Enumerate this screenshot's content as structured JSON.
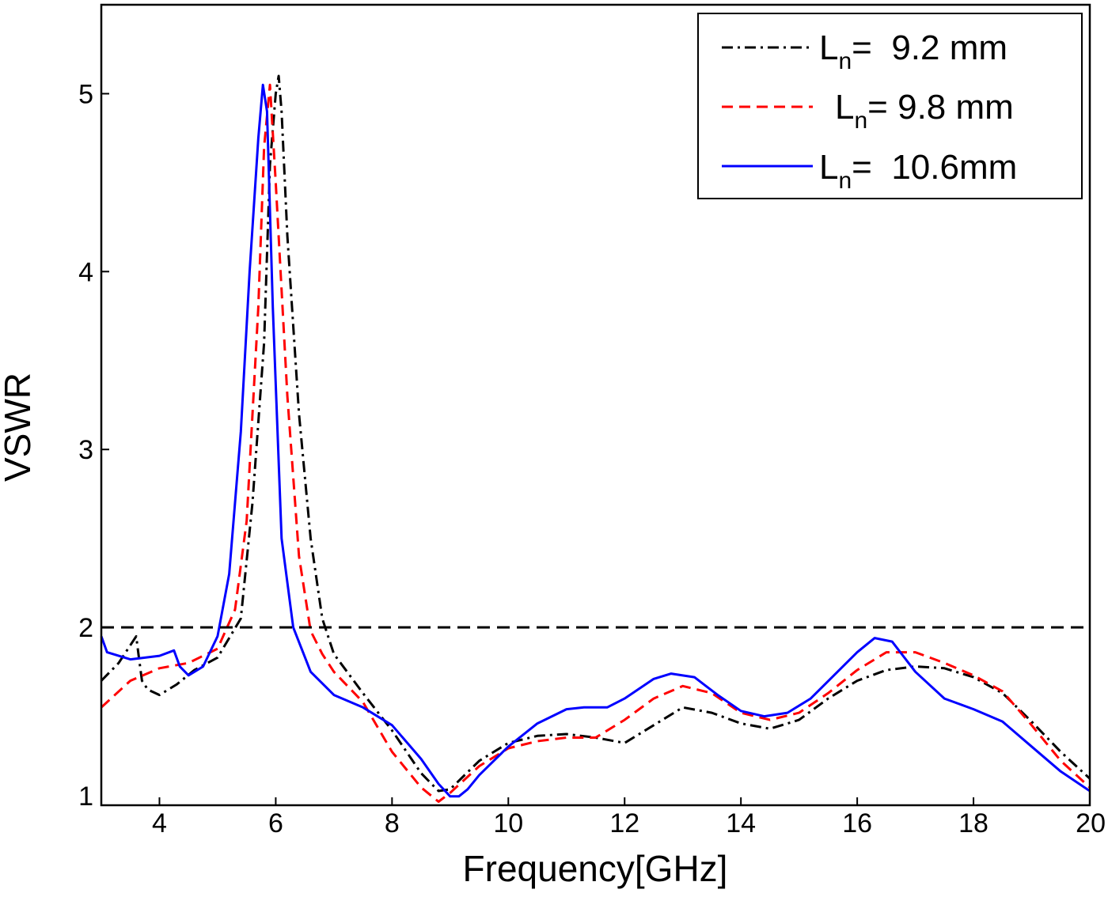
{
  "chart_data": {
    "type": "line",
    "title": "",
    "xlabel": "Frequency[GHz]",
    "ylabel": "VSWR",
    "xlim": [
      3,
      20
    ],
    "ylim": [
      1,
      5.5
    ],
    "xticks": [
      4,
      6,
      8,
      10,
      12,
      14,
      16,
      18,
      20
    ],
    "xtick_labels": [
      "4",
      "6",
      "8",
      "10",
      "12",
      "14",
      "16",
      "18",
      "20"
    ],
    "yticks": [
      1,
      2,
      3,
      4,
      5
    ],
    "ytick_labels": [
      "1",
      "2",
      "3",
      "4",
      "5"
    ],
    "grid": false,
    "legend_position": "top-right",
    "reference_line": {
      "y": 2,
      "style": "dashed",
      "color": "#000000"
    },
    "series": [
      {
        "name": "Ln= 9.2 mm",
        "legend": {
          "main": "L",
          "sub": "n",
          "rest": "=  9.2 mm"
        },
        "color": "#000000",
        "style": "dashdot",
        "x": [
          3.0,
          3.3,
          3.6,
          3.65,
          3.7,
          3.8,
          4.0,
          4.3,
          4.6,
          5.0,
          5.4,
          5.6,
          5.8,
          5.9,
          6.0,
          6.05,
          6.1,
          6.2,
          6.4,
          6.6,
          6.8,
          7.0,
          7.5,
          8.0,
          8.5,
          8.8,
          9.0,
          9.5,
          10.0,
          10.5,
          11.0,
          11.5,
          12.0,
          12.5,
          13.0,
          13.5,
          14.0,
          14.5,
          15.0,
          15.5,
          16.0,
          16.5,
          17.0,
          17.5,
          18.0,
          18.5,
          19.0,
          19.5,
          20.0
        ],
        "y": [
          1.7,
          1.8,
          1.95,
          1.82,
          1.7,
          1.65,
          1.62,
          1.68,
          1.76,
          1.83,
          2.05,
          2.7,
          3.6,
          4.6,
          5.0,
          5.1,
          4.9,
          4.2,
          3.2,
          2.5,
          2.05,
          1.85,
          1.63,
          1.42,
          1.18,
          1.08,
          1.09,
          1.25,
          1.35,
          1.39,
          1.4,
          1.38,
          1.35,
          1.45,
          1.55,
          1.52,
          1.46,
          1.43,
          1.48,
          1.6,
          1.7,
          1.76,
          1.78,
          1.77,
          1.72,
          1.63,
          1.47,
          1.3,
          1.15
        ]
      },
      {
        "name": "Ln= 9.8 mm",
        "legend": {
          "main": "L",
          "sub": "n",
          "rest": "= 9.8 mm"
        },
        "color": "#ff0000",
        "style": "dashed",
        "x": [
          3.0,
          3.5,
          4.0,
          4.5,
          5.0,
          5.3,
          5.5,
          5.7,
          5.8,
          5.9,
          6.0,
          6.2,
          6.4,
          6.6,
          6.8,
          7.0,
          7.5,
          8.0,
          8.5,
          8.8,
          9.0,
          9.5,
          10.0,
          10.5,
          11.0,
          11.5,
          12.0,
          12.5,
          13.0,
          13.5,
          14.0,
          14.5,
          15.0,
          15.5,
          16.0,
          16.5,
          17.0,
          17.5,
          18.0,
          18.5,
          19.0,
          19.5,
          20.0
        ],
        "y": [
          1.55,
          1.7,
          1.77,
          1.8,
          1.88,
          2.1,
          2.6,
          3.8,
          4.7,
          5.05,
          4.5,
          3.3,
          2.4,
          1.98,
          1.85,
          1.75,
          1.58,
          1.3,
          1.1,
          1.02,
          1.07,
          1.22,
          1.32,
          1.36,
          1.38,
          1.38,
          1.48,
          1.6,
          1.67,
          1.63,
          1.52,
          1.48,
          1.52,
          1.63,
          1.76,
          1.86,
          1.86,
          1.8,
          1.73,
          1.64,
          1.45,
          1.25,
          1.1
        ]
      },
      {
        "name": "Ln= 10.6mm",
        "legend": {
          "main": "L",
          "sub": "n",
          "rest": "=  10.6mm"
        },
        "color": "#0000ff",
        "style": "solid",
        "x": [
          3.0,
          3.1,
          3.5,
          4.0,
          4.25,
          4.35,
          4.5,
          4.75,
          5.0,
          5.2,
          5.4,
          5.55,
          5.7,
          5.78,
          5.85,
          5.95,
          6.1,
          6.3,
          6.6,
          7.0,
          7.5,
          8.0,
          8.5,
          8.8,
          9.0,
          9.15,
          9.3,
          9.5,
          10.0,
          10.5,
          11.0,
          11.3,
          11.7,
          12.0,
          12.5,
          12.8,
          13.2,
          13.6,
          14.0,
          14.4,
          14.8,
          15.2,
          15.6,
          16.0,
          16.3,
          16.6,
          17.0,
          17.5,
          18.0,
          18.5,
          19.0,
          19.5,
          20.0
        ],
        "y": [
          1.95,
          1.86,
          1.82,
          1.84,
          1.87,
          1.78,
          1.73,
          1.78,
          1.95,
          2.3,
          3.1,
          4.0,
          4.75,
          5.05,
          4.9,
          3.8,
          2.5,
          2.0,
          1.75,
          1.62,
          1.55,
          1.45,
          1.26,
          1.12,
          1.05,
          1.05,
          1.09,
          1.17,
          1.33,
          1.46,
          1.54,
          1.55,
          1.55,
          1.6,
          1.71,
          1.74,
          1.72,
          1.62,
          1.53,
          1.5,
          1.52,
          1.6,
          1.73,
          1.86,
          1.94,
          1.92,
          1.75,
          1.6,
          1.54,
          1.47,
          1.33,
          1.19,
          1.08
        ]
      }
    ]
  }
}
